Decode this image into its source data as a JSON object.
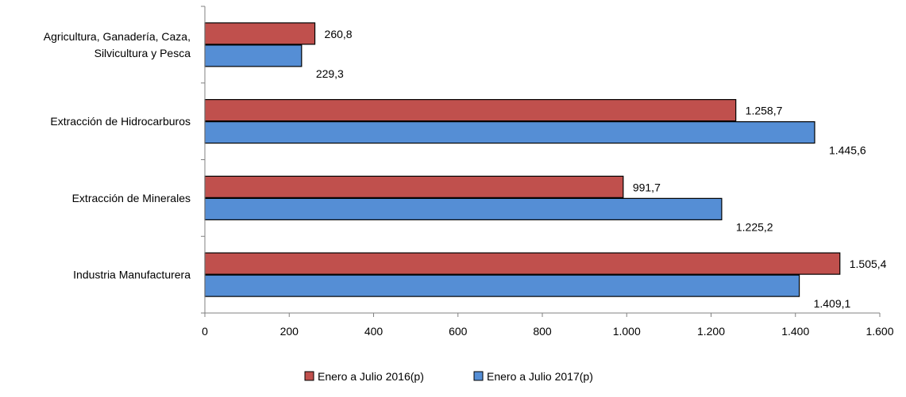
{
  "chart_data": {
    "type": "bar",
    "orientation": "horizontal",
    "categories": [
      [
        "Agricultura, Ganadería, Caza,",
        "Silvicultura y Pesca"
      ],
      [
        "Extracción de Hidrocarburos"
      ],
      [
        "Extracción de Minerales"
      ],
      [
        "Industria Manufacturera"
      ]
    ],
    "series": [
      {
        "name": "Enero a Julio 2016(p)",
        "color": "#C0504D",
        "values": [
          260.8,
          1258.7,
          991.7,
          1505.4
        ],
        "labels": [
          "260,8",
          "1.258,7",
          "991,7",
          "1.505,4"
        ]
      },
      {
        "name": "Enero a Julio 2017(p)",
        "color": "#558ED5",
        "values": [
          229.3,
          1445.6,
          1225.2,
          1409.1
        ],
        "labels": [
          "229,3",
          "1.445,6",
          "1.225,2",
          "1.409,1"
        ]
      }
    ],
    "xlim": [
      0,
      1600
    ],
    "ticks": [
      0,
      200,
      400,
      600,
      800,
      1000,
      1200,
      1400,
      1600
    ],
    "tick_labels": [
      "0",
      "200",
      "400",
      "600",
      "800",
      "1.000",
      "1.200",
      "1.400",
      "1.600"
    ],
    "grid": false,
    "legend_position": "bottom"
  }
}
